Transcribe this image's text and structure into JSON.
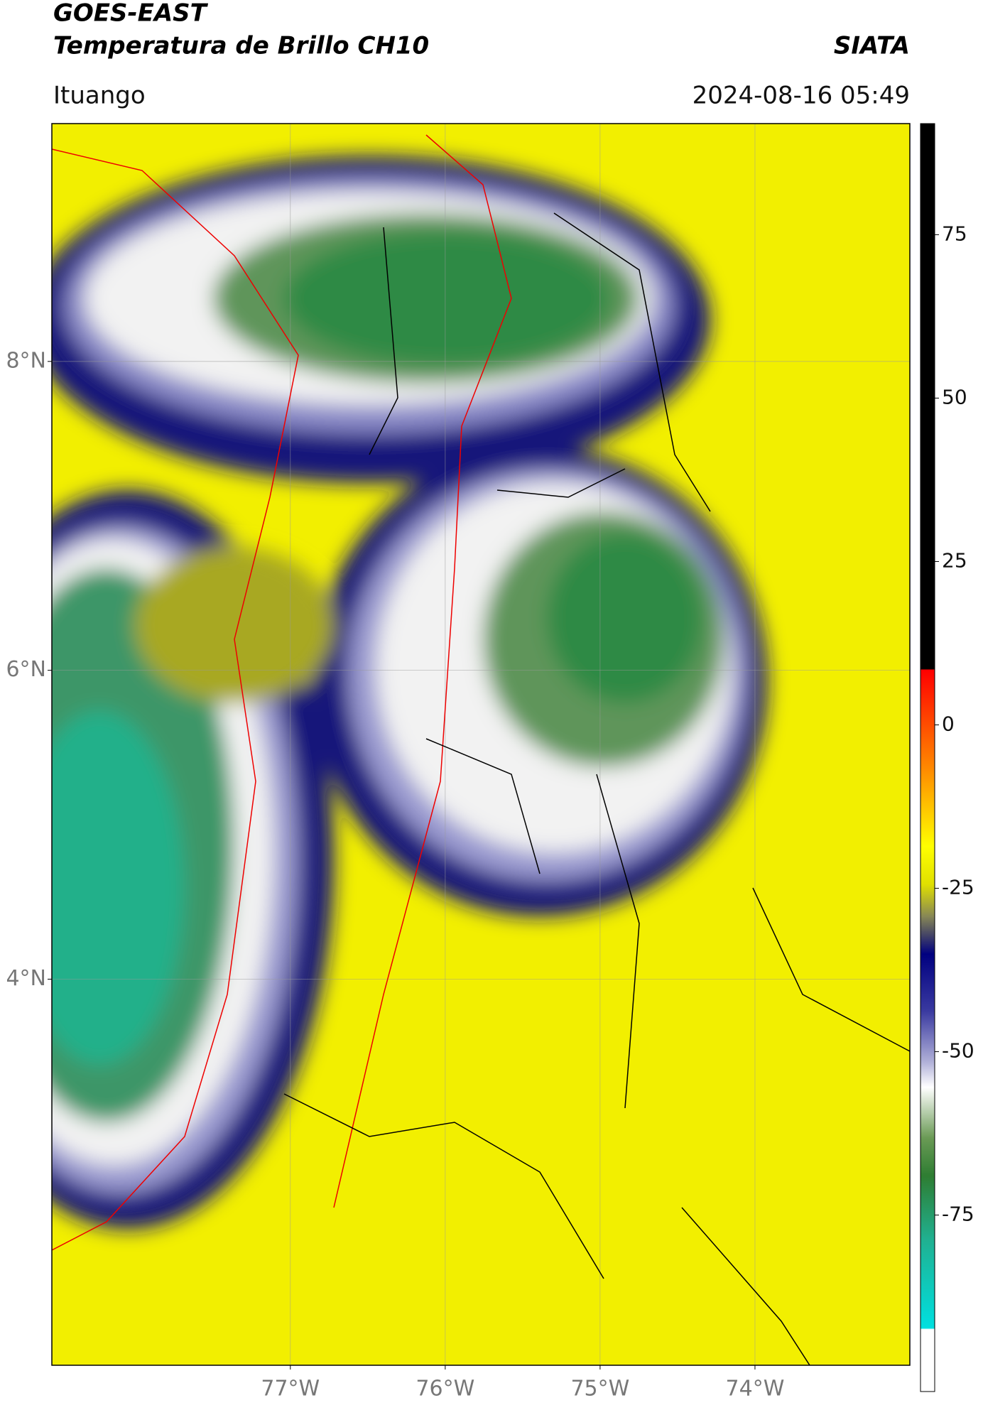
{
  "header": {
    "title": "GOES-EAST",
    "subtitle": "Temperatura de Brillo CH10",
    "brand": "SIATA",
    "location": "Ituango",
    "datetime": "2024-08-16 05:49"
  },
  "map": {
    "lonlim": [
      -78.54,
      -73.0
    ],
    "latlim": [
      1.5,
      9.54
    ],
    "lat_ticks": [
      {
        "value": 8,
        "label": "8°N"
      },
      {
        "value": 6,
        "label": "6°N"
      },
      {
        "value": 4,
        "label": "4°N"
      }
    ],
    "lon_ticks": [
      {
        "value": -77,
        "label": "77°W"
      },
      {
        "value": -76,
        "label": "76°W"
      },
      {
        "value": -75,
        "label": "75°W"
      },
      {
        "value": -74,
        "label": "74°W"
      }
    ],
    "grid": true
  },
  "colorbar": {
    "clim": [
      -102,
      92
    ],
    "ticks": [
      75,
      50,
      25,
      0,
      -25,
      -50,
      -75
    ]
  }
}
